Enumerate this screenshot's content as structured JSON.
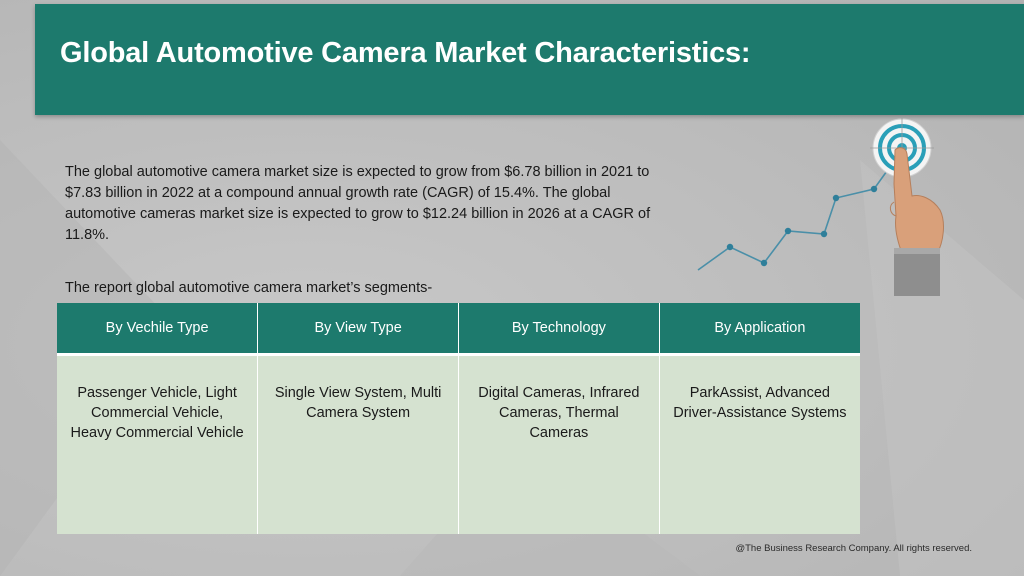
{
  "slide": {
    "title": "Global Automotive Camera Market Characteristics:",
    "intro": "The global automotive camera market size is expected to grow from $6.78 billion in 2021 to $7.83 billion in 2022 at a compound annual growth rate (CAGR) of 15.4%. The global automotive cameras market size is expected to grow to $12.24 billion in 2026 at a CAGR of 11.8%.",
    "segments_title": "The report global automotive camera market’s segments-",
    "table": {
      "headers": [
        "By Vechile Type",
        "By View Type",
        "By Technology",
        "By Application"
      ],
      "cells": [
        "Passenger Vehicle, Light Commercial Vehicle, Heavy Commercial Vehicle",
        "Single View System, Multi Camera System",
        "Digital Cameras, Infrared Cameras, Thermal Cameras",
        "ParkAssist, Advanced Driver-Assistance Systems"
      ]
    },
    "footer": "@The Business Research Company. All rights reserved."
  },
  "colors": {
    "header_bg": "#1d7a6d",
    "table_body_bg": "#d5e2d0",
    "chart_line": "#4a90a8",
    "target_ring": "#2a9fb8"
  },
  "illustration": {
    "icons": [
      "growth-line-chart-icon",
      "target-icon",
      "pointing-hand-icon"
    ]
  }
}
